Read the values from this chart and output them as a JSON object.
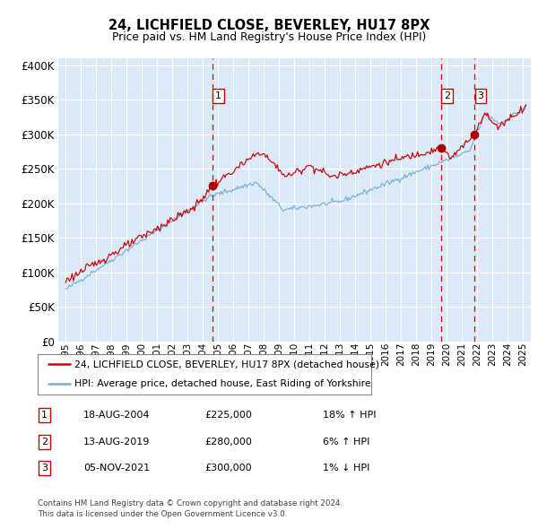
{
  "title": "24, LICHFIELD CLOSE, BEVERLEY, HU17 8PX",
  "subtitle": "Price paid vs. HM Land Registry's House Price Index (HPI)",
  "legend_line1": "24, LICHFIELD CLOSE, BEVERLEY, HU17 8PX (detached house)",
  "legend_line2": "HPI: Average price, detached house, East Riding of Yorkshire",
  "table": [
    {
      "num": "1",
      "date": "18-AUG-2004",
      "price": "£225,000",
      "pct": "18%",
      "dir": "↑",
      "label": "HPI"
    },
    {
      "num": "2",
      "date": "13-AUG-2019",
      "price": "£280,000",
      "pct": "6%",
      "dir": "↑",
      "label": "HPI"
    },
    {
      "num": "3",
      "date": "05-NOV-2021",
      "price": "£300,000",
      "pct": "1%",
      "dir": "↓",
      "label": "HPI"
    }
  ],
  "footer1": "Contains HM Land Registry data © Crown copyright and database right 2024.",
  "footer2": "This data is licensed under the Open Government Licence v3.0.",
  "sale_dates_num": [
    2004.63,
    2019.62,
    2021.84
  ],
  "sale_prices": [
    225000,
    280000,
    300000
  ],
  "vline_colors": [
    "#dd0000",
    "#dd0000",
    "#dd0000"
  ],
  "bg_color": "#dce9f8",
  "grid_color": "#ffffff",
  "red_line_color": "#cc0000",
  "blue_line_color": "#7ab0d4",
  "dot_color": "#aa0000",
  "ylim": [
    0,
    410000
  ],
  "yticks": [
    0,
    50000,
    100000,
    150000,
    200000,
    250000,
    300000,
    350000,
    400000
  ],
  "xlim_start": 1994.5,
  "xlim_end": 2025.5,
  "xticks_start": 1995,
  "xticks_end": 2025
}
